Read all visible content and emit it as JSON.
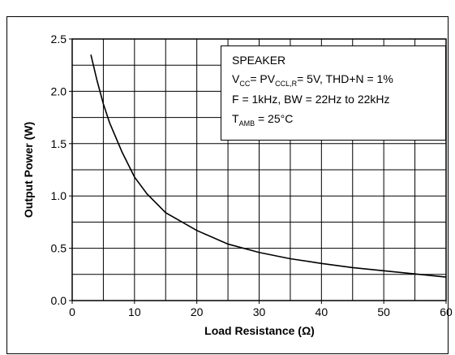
{
  "chart_data": {
    "type": "line",
    "xlabel": "Load Resistance (Ω)",
    "ylabel": "Output Power (W)",
    "x": [
      3,
      4,
      5,
      6,
      8,
      10,
      12,
      15,
      20,
      25,
      30,
      35,
      40,
      45,
      50,
      55,
      60
    ],
    "series": [
      {
        "color": "#000000",
        "values": [
          2.35,
          2.1,
          1.88,
          1.7,
          1.42,
          1.18,
          1.02,
          0.84,
          0.67,
          0.54,
          0.46,
          0.4,
          0.355,
          0.315,
          0.285,
          0.255,
          0.225
        ]
      }
    ],
    "xlim": [
      0,
      60
    ],
    "ylim": [
      0,
      2.5
    ],
    "xticks": [
      0,
      10,
      20,
      30,
      40,
      50,
      60
    ],
    "yticks": [
      {
        "value": 0,
        "label": "0.0"
      },
      0.5,
      {
        "value": 1,
        "label": "1.0"
      },
      1.5,
      {
        "value": 2,
        "label": "2.0"
      },
      2.5
    ],
    "xgrid": [
      0,
      5,
      10,
      15,
      20,
      25,
      30,
      35,
      40,
      45,
      50,
      55,
      60
    ],
    "ygrid": [
      0,
      0.25,
      0.5,
      0.75,
      1,
      1.25,
      1.5,
      1.75,
      2,
      2.25,
      2.5
    ],
    "annotation": [
      [
        {
          "text": "SPEAKER",
          "sub": false
        }
      ],
      [
        {
          "text": "V",
          "sub": false
        },
        {
          "text": "CC",
          "sub": true
        },
        {
          "text": "= PV",
          "sub": false
        },
        {
          "text": "CCL,R",
          "sub": true
        },
        {
          "text": "= 5V, THD+N = 1%",
          "sub": false
        }
      ],
      [
        {
          "text": "F = 1kHz, BW = 22Hz to 22kHz",
          "sub": false
        }
      ],
      [
        {
          "text": "T",
          "sub": false
        },
        {
          "text": "AMB",
          "sub": true
        },
        {
          "text": " = 25°C",
          "sub": false
        }
      ]
    ]
  }
}
